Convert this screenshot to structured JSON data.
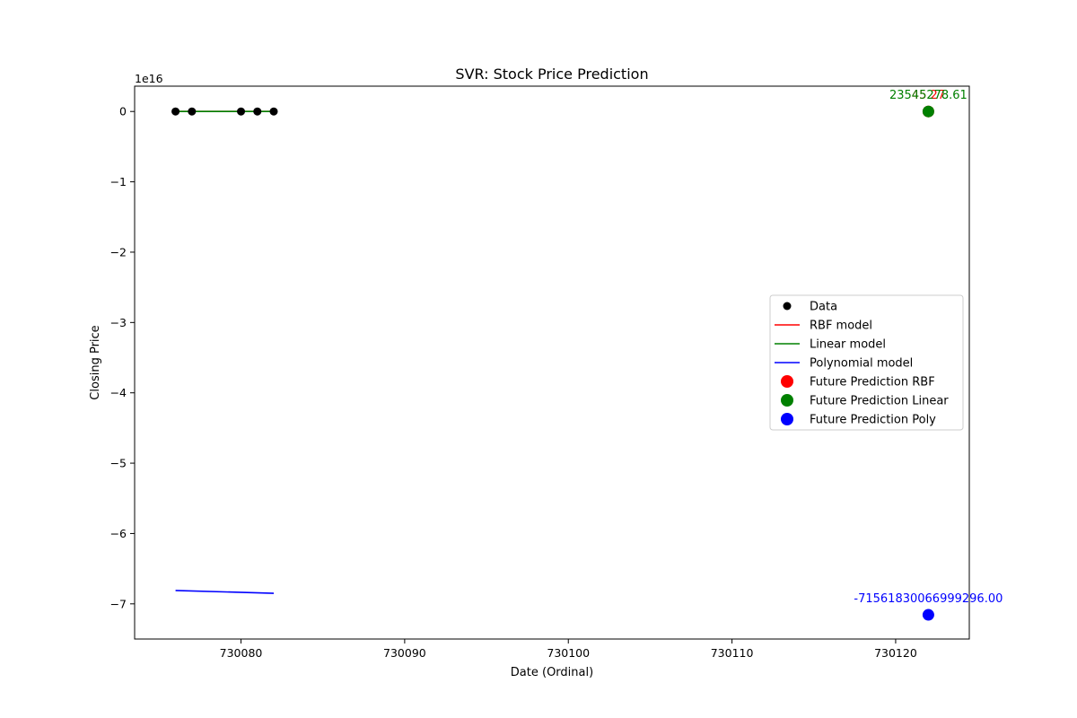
{
  "chart_data": {
    "type": "scatter",
    "title": "SVR: Stock Price Prediction",
    "xlabel": "Date (Ordinal)",
    "ylabel": "Closing Price",
    "y_scale_label": "1e16",
    "y_scale": 1e+16,
    "xlim": [
      730073.5,
      730124.5
    ],
    "ylim": [
      -7.5,
      0.36
    ],
    "x_ticks": [
      730080,
      730090,
      730100,
      730110,
      730120
    ],
    "x_tick_labels": [
      "730080",
      "730090",
      "730100",
      "730110",
      "730120"
    ],
    "y_ticks": [
      0,
      -1,
      -2,
      -3,
      -4,
      -5,
      -6,
      -7
    ],
    "y_tick_labels": [
      "0",
      "−1",
      "−2",
      "−3",
      "−4",
      "−5",
      "−6",
      "−7"
    ],
    "grid": false,
    "legend_position": "center-right",
    "data_points": {
      "name": "Data",
      "color": "#000000",
      "x": [
        730076,
        730077,
        730080,
        730081,
        730082
      ],
      "y": [
        0,
        0,
        0,
        0,
        0
      ]
    },
    "series": [
      {
        "name": "RBF model",
        "color": "#ff0000",
        "x": [
          730076,
          730082
        ],
        "y": [
          0,
          0
        ]
      },
      {
        "name": "Linear model",
        "color": "#008000",
        "x": [
          730076,
          730082
        ],
        "y": [
          0,
          0
        ]
      },
      {
        "name": "Polynomial model",
        "color": "#0000ff",
        "x": [
          730076,
          730082
        ],
        "y": [
          -6.81,
          -6.85
        ]
      }
    ],
    "future_predictions": [
      {
        "name": "Future Prediction RBF",
        "color": "#ff0000",
        "x": 730122,
        "y": 0,
        "label": "45.27"
      },
      {
        "name": "Future Prediction Linear",
        "color": "#008000",
        "x": 730122,
        "y": 0,
        "label": "23545278.61"
      },
      {
        "name": "Future Prediction Poly",
        "color": "#0000ff",
        "x": 730122,
        "y": -7.15618300669993,
        "label": "-71561830066999296.00"
      }
    ]
  }
}
